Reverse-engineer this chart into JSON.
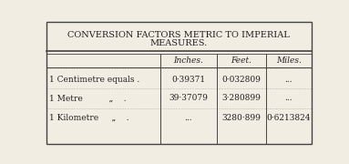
{
  "title_line1": "CONVERSION FACTORS METRIC TO IMPERIAL",
  "title_line2": "MEASURES.",
  "col_headers": [
    "Inches.",
    "Feet.",
    "Miles."
  ],
  "row_labels": [
    "1 Centimetre equals .",
    "1 Metre          „    .",
    "1 Kilometre     „    ."
  ],
  "row_prefix": [
    "",
    "1",
    "1"
  ],
  "inches_vals": [
    "0·39371",
    "39·37079",
    "..."
  ],
  "feet_vals": [
    "0·032809",
    "3·280899",
    "3280·899"
  ],
  "miles_vals": [
    "...",
    "...",
    "0·6213824"
  ],
  "bg_color": "#f2ede3",
  "border_color": "#444444",
  "text_color": "#222222",
  "title_fontsize": 7.0,
  "header_fontsize": 6.5,
  "data_fontsize": 6.5,
  "label_fontsize": 6.5
}
